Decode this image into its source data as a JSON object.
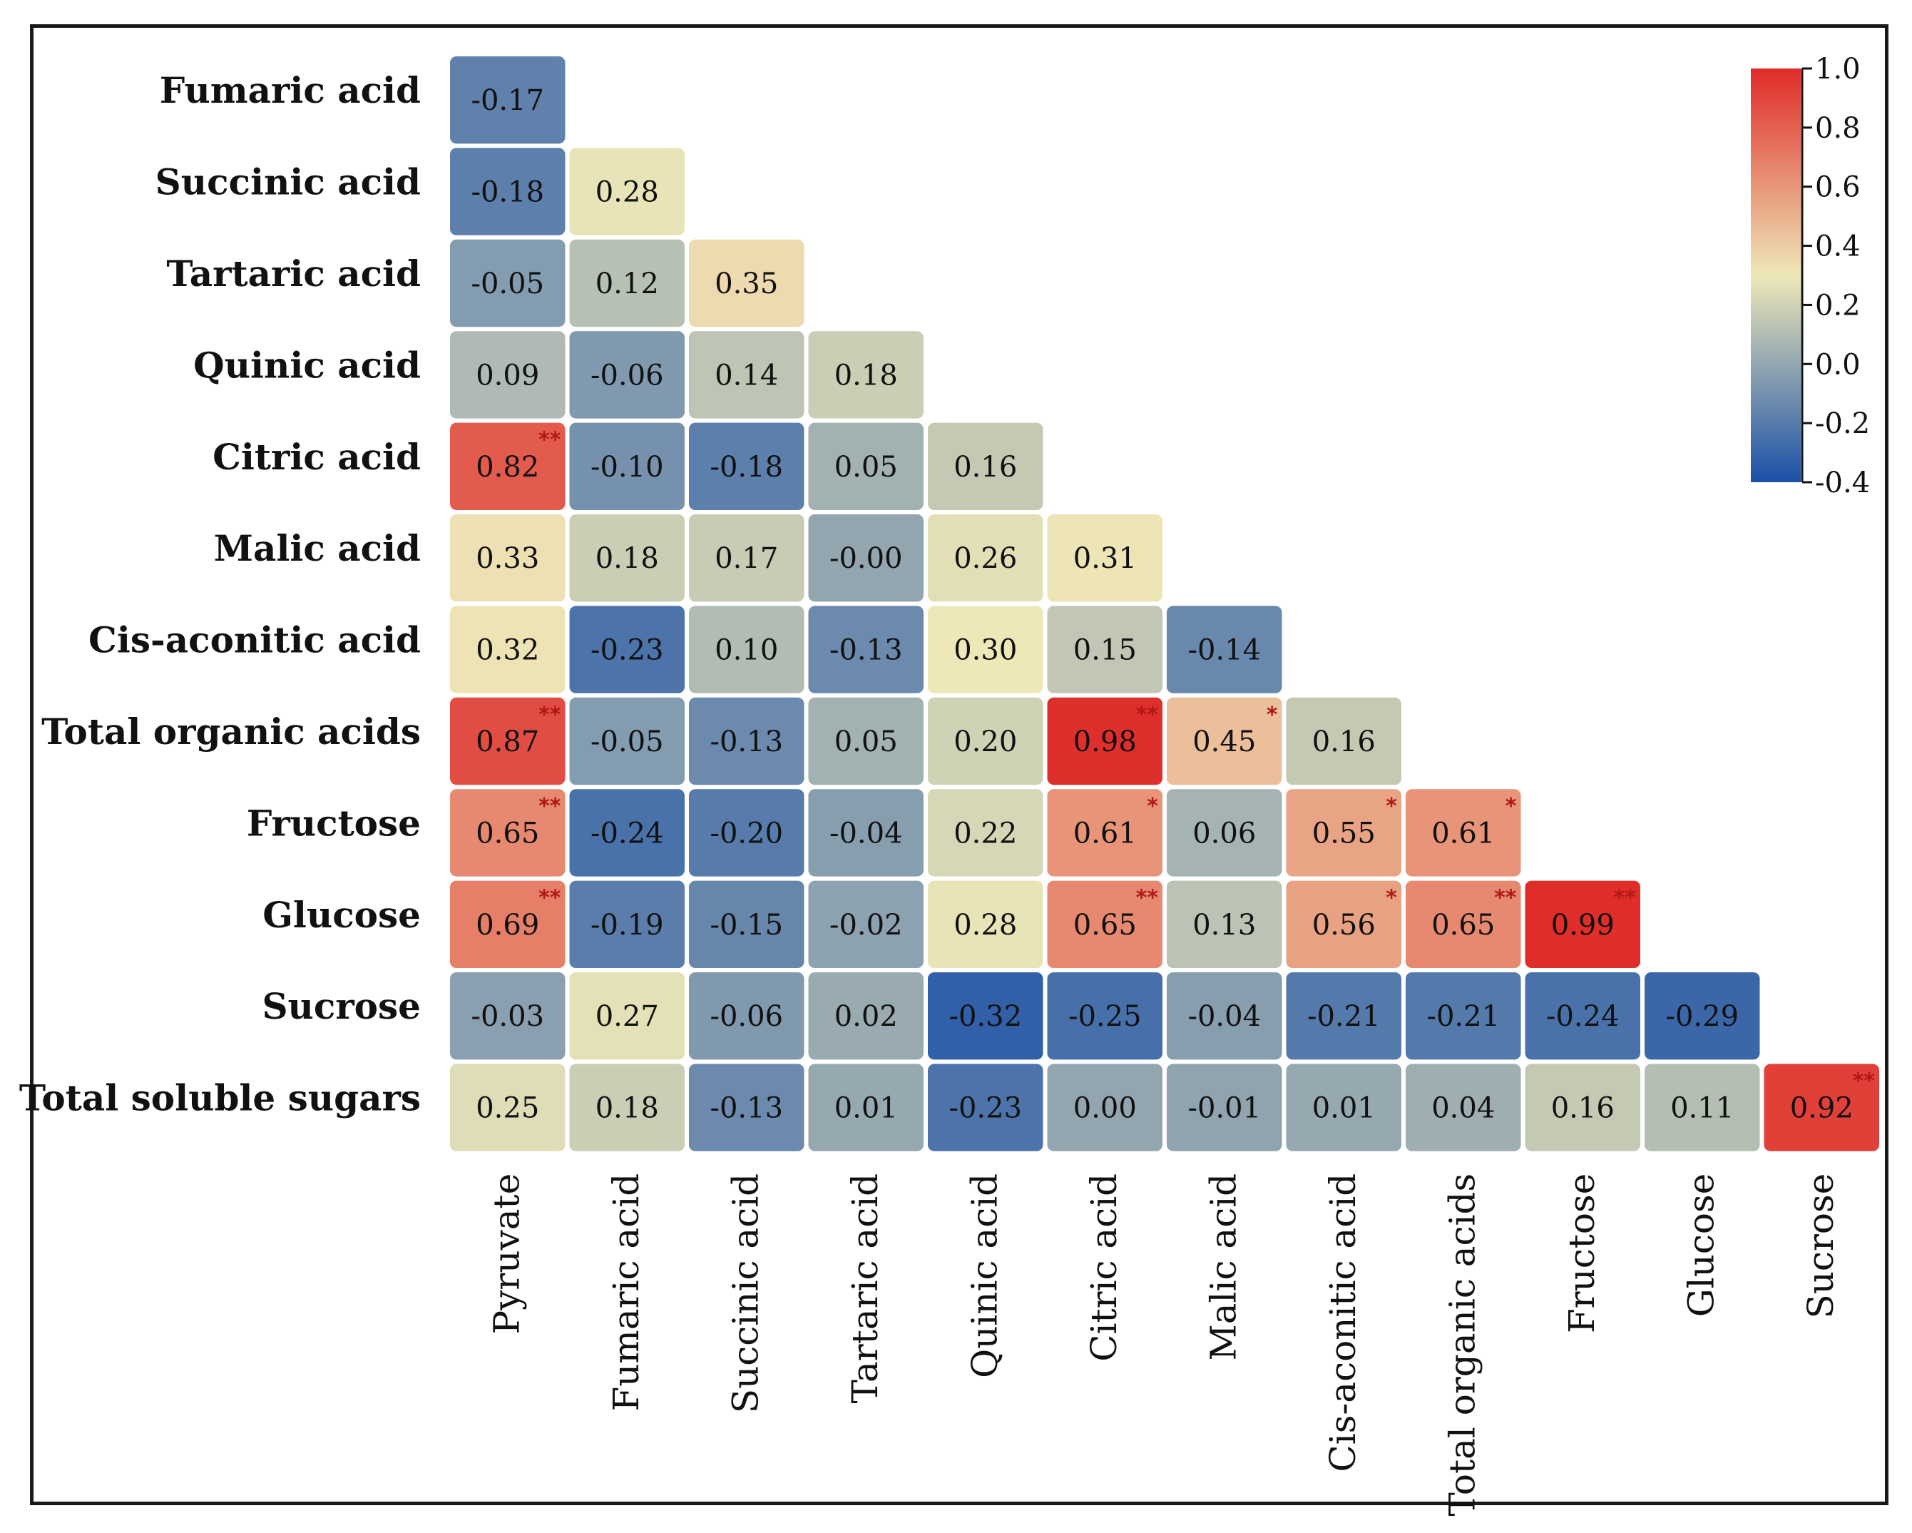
{
  "chart_data": {
    "type": "heatmap",
    "title": "",
    "row_labels": [
      "Fumaric acid",
      "Succinic acid",
      "Tartaric acid",
      "Quinic acid",
      "Citric acid",
      "Malic acid",
      "Cis-aconitic acid",
      "Total organic acids",
      "Fructose",
      "Glucose",
      "Sucrose",
      "Total soluble sugars"
    ],
    "col_labels": [
      "Pyruvate",
      "Fumaric acid",
      "Succinic acid",
      "Tartaric acid",
      "Quinic acid",
      "Citric acid",
      "Malic acid",
      "Cis-aconitic acid",
      "Total organic acids",
      "Fructose",
      "Glucose",
      "Sucrose"
    ],
    "values": [
      [
        "-0.17"
      ],
      [
        "-0.18",
        "0.28"
      ],
      [
        "-0.05",
        "0.12",
        "0.35"
      ],
      [
        "0.09",
        "-0.06",
        "0.14",
        "0.18"
      ],
      [
        "0.82",
        "-0.10",
        "-0.18",
        "0.05",
        "0.16"
      ],
      [
        "0.33",
        "0.18",
        "0.17",
        "-0.00",
        "0.26",
        "0.31"
      ],
      [
        "0.32",
        "-0.23",
        "0.10",
        "-0.13",
        "0.30",
        "0.15",
        "-0.14"
      ],
      [
        "0.87",
        "-0.05",
        "-0.13",
        "0.05",
        "0.20",
        "0.98",
        "0.45",
        "0.16"
      ],
      [
        "0.65",
        "-0.24",
        "-0.20",
        "-0.04",
        "0.22",
        "0.61",
        "0.06",
        "0.55",
        "0.61"
      ],
      [
        "0.69",
        "-0.19",
        "-0.15",
        "-0.02",
        "0.28",
        "0.65",
        "0.13",
        "0.56",
        "0.65",
        "0.99"
      ],
      [
        "-0.03",
        "0.27",
        "-0.06",
        "0.02",
        "-0.32",
        "-0.25",
        "-0.04",
        "-0.21",
        "-0.21",
        "-0.24",
        "-0.29"
      ],
      [
        "0.25",
        "0.18",
        "-0.13",
        "0.01",
        "-0.23",
        "0.00",
        "-0.01",
        "0.01",
        "0.04",
        "0.16",
        "0.11",
        "0.92"
      ]
    ],
    "significance": [
      [
        ""
      ],
      [
        "",
        ""
      ],
      [
        "",
        "",
        ""
      ],
      [
        "",
        "",
        "",
        ""
      ],
      [
        "**",
        "",
        "",
        "",
        ""
      ],
      [
        "",
        "",
        "",
        "",
        "",
        ""
      ],
      [
        "",
        "",
        "",
        "",
        "",
        "",
        ""
      ],
      [
        "**",
        "",
        "",
        "",
        "",
        "**",
        "*",
        ""
      ],
      [
        "**",
        "",
        "",
        "",
        "",
        "*",
        "",
        "*",
        "*"
      ],
      [
        "**",
        "",
        "",
        "",
        "",
        "**",
        "",
        "*",
        "**",
        "**"
      ],
      [
        "",
        "",
        "",
        "",
        "",
        "",
        "",
        "",
        "",
        "",
        ""
      ],
      [
        "",
        "",
        "",
        "",
        "",
        "",
        "",
        "",
        "",
        "",
        "",
        "**"
      ]
    ],
    "colorbar": {
      "range": [
        -0.4,
        1.0
      ],
      "ticks": [
        "1.0",
        "0.8",
        "0.6",
        "0.4",
        "0.2",
        "0.0",
        "-0.2",
        "-0.4"
      ],
      "colors": {
        "low": "#1a4fa6",
        "mid": "#eee8b8",
        "high": "#df2a28"
      }
    }
  }
}
